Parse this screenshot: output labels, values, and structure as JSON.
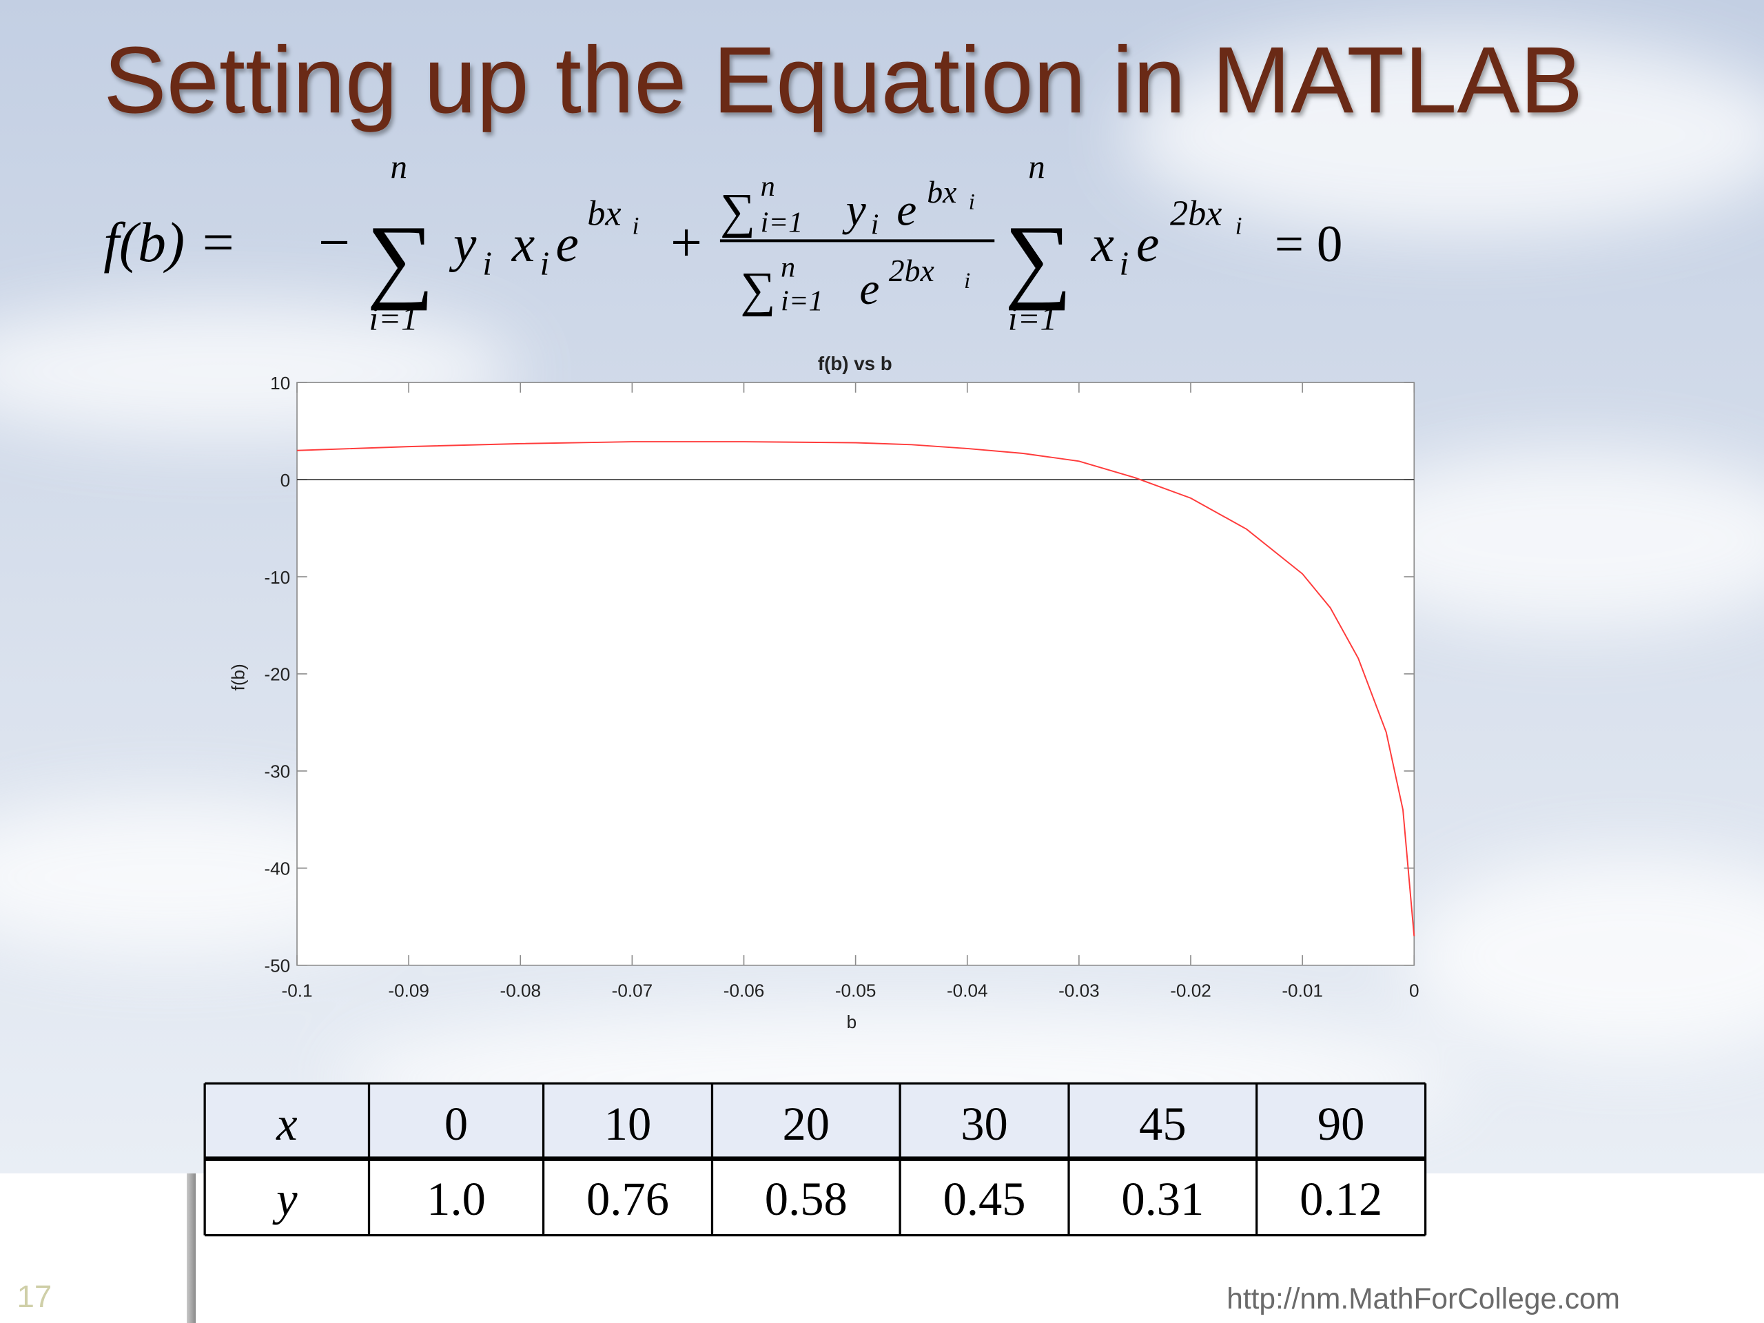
{
  "title": "Setting up the Equation in MATLAB",
  "equation": {
    "parts": [
      "f(b) =",
      "−",
      "∑",
      "n",
      "i=1",
      "y",
      "i",
      "x",
      "i",
      "e",
      "bx",
      "i",
      "+",
      "∑",
      "n",
      "i=1",
      "y",
      "i",
      "e",
      "bx",
      "i",
      "∑",
      "n",
      "i=1",
      "e",
      "2bx",
      "i",
      "∑",
      "n",
      "i=1",
      "x",
      "i",
      "e",
      "2bx",
      "i",
      "= 0"
    ]
  },
  "chart_data": {
    "type": "line",
    "title": "f(b) vs b",
    "x_label": "b",
    "y_label": "f(b)",
    "x": [
      -0.1,
      -0.09,
      -0.08,
      -0.07,
      -0.06,
      -0.05,
      -0.045,
      -0.04,
      -0.035,
      -0.03,
      -0.025,
      -0.02,
      -0.015,
      -0.01,
      -0.0075,
      -0.005,
      -0.0025,
      -0.001,
      0
    ],
    "values": [
      3.0,
      3.4,
      3.7,
      3.9,
      3.9,
      3.8,
      3.6,
      3.2,
      2.7,
      1.9,
      0.2,
      -1.9,
      -5.1,
      -9.7,
      -13.2,
      -18.4,
      -26,
      -34,
      -47
    ],
    "color": "#ff3b3b",
    "xlim": [
      -0.1,
      0
    ],
    "xticks": [
      -0.1,
      -0.09,
      -0.08,
      -0.07,
      -0.06,
      -0.05,
      -0.04,
      -0.03,
      -0.02,
      -0.01,
      0
    ],
    "ylim": [
      -50,
      10
    ],
    "yticks": [
      -50,
      -40,
      -30,
      -20,
      -10,
      0,
      10
    ],
    "hline": 0,
    "grid": false
  },
  "table": {
    "rows": [
      [
        "x",
        "0",
        "10",
        "20",
        "30",
        "45",
        "90"
      ],
      [
        "y",
        "1.0",
        "0.76",
        "0.58",
        "0.45",
        "0.31",
        "0.12"
      ]
    ]
  },
  "footer": {
    "page_number": "17",
    "url": "http://nm.MathForCollege.com"
  }
}
